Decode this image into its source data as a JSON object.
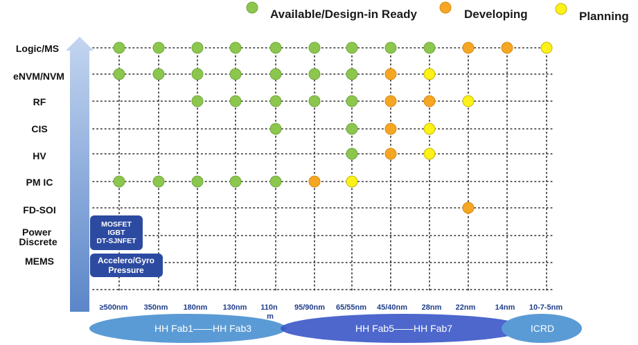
{
  "legend": [
    {
      "label": "Available/Design-in Ready",
      "status": "available"
    },
    {
      "label": "Developing",
      "status": "developing"
    },
    {
      "label": "Planning",
      "status": "planning"
    }
  ],
  "colors": {
    "available": "#8cc64f",
    "developing": "#f5a623",
    "planning": "#fcf118",
    "box": "#2c4aa0",
    "fab_ellipse": "#5b9bd5",
    "fab_overlap": "#3a57c8",
    "grid": "#2b2b2b",
    "arrow_top": "#c3d5f0",
    "arrow_bottom": "#5b86c8"
  },
  "rows": [
    "Logic/MS",
    "eNVM/NVM",
    "RF",
    "CIS",
    "HV",
    "PM IC",
    "FD-SOI",
    "Power Discrete",
    "MEMS"
  ],
  "nodes": [
    "≥500nm",
    "350nm",
    "180nm",
    "130nm",
    "110nm",
    "95/90nm",
    "65/55nm",
    "45/40nm",
    "28nm",
    "22nm",
    "14nm",
    "10-7-5nm"
  ],
  "matrix": [
    [
      "available",
      "available",
      "available",
      "available",
      "available",
      "available",
      "available",
      "available",
      "available",
      "developing",
      "developing",
      "planning"
    ],
    [
      "available",
      "available",
      "available",
      "available",
      "available",
      "available",
      "available",
      "developing",
      "planning",
      null,
      null,
      null
    ],
    [
      null,
      null,
      "available",
      "available",
      "available",
      "available",
      "available",
      "developing",
      "developing",
      "planning",
      null,
      null
    ],
    [
      null,
      null,
      null,
      null,
      "available",
      null,
      "available",
      "developing",
      "planning",
      null,
      null,
      null
    ],
    [
      null,
      null,
      null,
      null,
      null,
      null,
      "available",
      "developing",
      "planning",
      null,
      null,
      null
    ],
    [
      "available",
      "available",
      "available",
      "available",
      "available",
      "developing",
      "planning",
      null,
      null,
      null,
      null,
      null
    ],
    [
      null,
      null,
      null,
      null,
      null,
      null,
      null,
      null,
      null,
      "developing",
      null,
      null
    ],
    [
      null,
      null,
      null,
      null,
      null,
      null,
      null,
      null,
      null,
      null,
      null,
      null
    ],
    [
      null,
      null,
      null,
      null,
      null,
      null,
      null,
      null,
      null,
      null,
      null,
      null
    ]
  ],
  "boxes": [
    {
      "row": "Power Discrete",
      "lines": [
        "MOSFET",
        "IGBT",
        "DT-SJNFET"
      ]
    },
    {
      "row": "MEMS",
      "lines": [
        "Accelero/Gyro",
        "Pressure"
      ]
    }
  ],
  "fabs": [
    {
      "label": "HH Fab1——HH Fab3"
    },
    {
      "label": "HH Fab5——HH Fab7"
    },
    {
      "label": "ICRD"
    }
  ]
}
